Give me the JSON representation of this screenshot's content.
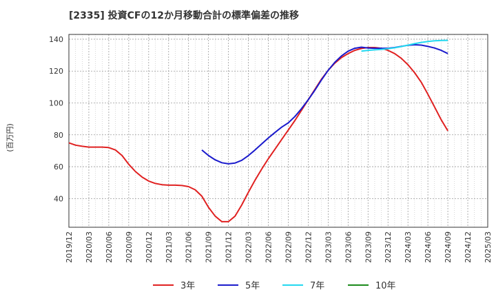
{
  "chart_data": {
    "type": "line",
    "title": "[2335]  投資CFの12か月移動合計の標準偏差の推移",
    "ylabel": "(百万円)",
    "xlabel": "",
    "ylim": [
      22,
      143
    ],
    "yticks": [
      40,
      60,
      80,
      100,
      120,
      140
    ],
    "xticks": [
      "2019/12",
      "2020/03",
      "2020/06",
      "2020/09",
      "2020/12",
      "2021/03",
      "2021/06",
      "2021/09",
      "2021/12",
      "2022/03",
      "2022/06",
      "2022/09",
      "2022/12",
      "2023/03",
      "2023/06",
      "2023/09",
      "2023/12",
      "2024/03",
      "2024/06",
      "2024/09",
      "2024/12",
      "2025/03"
    ],
    "grid": true,
    "legend_position": "bottom",
    "series": [
      {
        "name": "3年",
        "color": "#e02020",
        "points": [
          [
            "2019/12",
            75
          ],
          [
            "2020/01",
            73.5
          ],
          [
            "2020/02",
            72.8
          ],
          [
            "2020/03",
            72.3
          ],
          [
            "2020/04",
            72.3
          ],
          [
            "2020/05",
            72.3
          ],
          [
            "2020/06",
            72
          ],
          [
            "2020/07",
            70.5
          ],
          [
            "2020/08",
            67
          ],
          [
            "2020/09",
            61.5
          ],
          [
            "2020/10",
            57
          ],
          [
            "2020/11",
            53.5
          ],
          [
            "2020/12",
            51
          ],
          [
            "2021/01",
            49.5
          ],
          [
            "2021/02",
            48.7
          ],
          [
            "2021/03",
            48.4
          ],
          [
            "2021/04",
            48.4
          ],
          [
            "2021/05",
            48.2
          ],
          [
            "2021/06",
            47.5
          ],
          [
            "2021/07",
            45.5
          ],
          [
            "2021/08",
            41.5
          ],
          [
            "2021/09",
            34.5
          ],
          [
            "2021/10",
            29
          ],
          [
            "2021/11",
            25.5
          ],
          [
            "2021/12",
            25.5
          ],
          [
            "2022/01",
            29
          ],
          [
            "2022/02",
            36
          ],
          [
            "2022/03",
            44
          ],
          [
            "2022/04",
            51.5
          ],
          [
            "2022/05",
            58.5
          ],
          [
            "2022/06",
            65
          ],
          [
            "2022/07",
            71
          ],
          [
            "2022/08",
            77
          ],
          [
            "2022/09",
            83
          ],
          [
            "2022/10",
            89
          ],
          [
            "2022/11",
            95.5
          ],
          [
            "2022/12",
            102
          ],
          [
            "2023/01",
            108.5
          ],
          [
            "2023/02",
            115
          ],
          [
            "2023/03",
            120.5
          ],
          [
            "2023/04",
            125
          ],
          [
            "2023/05",
            128.5
          ],
          [
            "2023/06",
            131
          ],
          [
            "2023/07",
            133
          ],
          [
            "2023/08",
            134.2
          ],
          [
            "2023/09",
            134.8
          ],
          [
            "2023/10",
            134.8
          ],
          [
            "2023/11",
            134.3
          ],
          [
            "2023/12",
            133
          ],
          [
            "2024/01",
            131
          ],
          [
            "2024/02",
            128
          ],
          [
            "2024/03",
            124
          ],
          [
            "2024/04",
            119
          ],
          [
            "2024/05",
            113
          ],
          [
            "2024/06",
            105.5
          ],
          [
            "2024/07",
            97.5
          ],
          [
            "2024/08",
            89.5
          ],
          [
            "2024/09",
            82.5
          ]
        ]
      },
      {
        "name": "5年",
        "color": "#1a1acc",
        "points": [
          [
            "2021/08",
            70.5
          ],
          [
            "2021/09",
            67
          ],
          [
            "2021/10",
            64.3
          ],
          [
            "2021/11",
            62.5
          ],
          [
            "2021/12",
            61.8
          ],
          [
            "2022/01",
            62.3
          ],
          [
            "2022/02",
            64
          ],
          [
            "2022/03",
            67
          ],
          [
            "2022/04",
            70.5
          ],
          [
            "2022/05",
            74.3
          ],
          [
            "2022/06",
            78
          ],
          [
            "2022/07",
            81.5
          ],
          [
            "2022/08",
            84.8
          ],
          [
            "2022/09",
            87.5
          ],
          [
            "2022/10",
            91.5
          ],
          [
            "2022/11",
            96.5
          ],
          [
            "2022/12",
            102
          ],
          [
            "2023/01",
            108
          ],
          [
            "2023/02",
            114.5
          ],
          [
            "2023/03",
            120.5
          ],
          [
            "2023/04",
            125.5
          ],
          [
            "2023/05",
            129.5
          ],
          [
            "2023/06",
            132.5
          ],
          [
            "2023/07",
            134.3
          ],
          [
            "2023/08",
            135
          ],
          [
            "2023/09",
            134.5
          ],
          [
            "2023/10",
            134.3
          ],
          [
            "2023/11",
            134.3
          ],
          [
            "2023/12",
            134.3
          ],
          [
            "2024/01",
            134.8
          ],
          [
            "2024/02",
            135.5
          ],
          [
            "2024/03",
            136.2
          ],
          [
            "2024/04",
            136.5
          ],
          [
            "2024/05",
            136.3
          ],
          [
            "2024/06",
            135.5
          ],
          [
            "2024/07",
            134.5
          ],
          [
            "2024/08",
            133
          ],
          [
            "2024/09",
            131
          ]
        ]
      },
      {
        "name": "7年",
        "color": "#22d8f0",
        "points": [
          [
            "2023/08",
            132.5
          ],
          [
            "2023/09",
            133
          ],
          [
            "2023/10",
            133.3
          ],
          [
            "2023/11",
            133.6
          ],
          [
            "2023/12",
            134
          ],
          [
            "2024/01",
            134.6
          ],
          [
            "2024/02",
            135.4
          ],
          [
            "2024/03",
            136.3
          ],
          [
            "2024/04",
            137.2
          ],
          [
            "2024/05",
            138
          ],
          [
            "2024/06",
            138.6
          ],
          [
            "2024/07",
            139
          ],
          [
            "2024/08",
            139.2
          ],
          [
            "2024/09",
            139.3
          ]
        ]
      },
      {
        "name": "10年",
        "color": "#1a8a1a",
        "points": []
      }
    ]
  }
}
